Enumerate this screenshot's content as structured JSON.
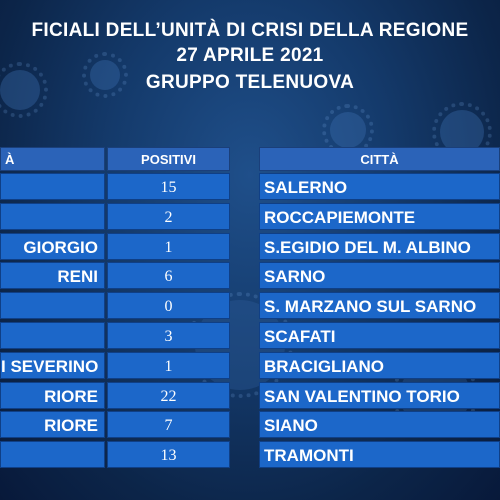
{
  "header": {
    "line1": "FICIALI DELL’UNITÀ DI CRISI DELLA REGIONE",
    "line2": "27 APRILE 2021",
    "line3": "GRUPPO TELENUOVA"
  },
  "left_table": {
    "col_city": "À",
    "col_positivi": "POSITIVI",
    "rows": [
      {
        "city": "",
        "positivi": "15"
      },
      {
        "city": "",
        "positivi": "2"
      },
      {
        "city": "GIORGIO",
        "positivi": "1"
      },
      {
        "city": "RENI",
        "positivi": "6"
      },
      {
        "city": "",
        "positivi": "0"
      },
      {
        "city": "",
        "positivi": "3"
      },
      {
        "city": "I SEVERINO",
        "positivi": "1"
      },
      {
        "city": "RIORE",
        "positivi": "22"
      },
      {
        "city": "RIORE",
        "positivi": "7"
      },
      {
        "city": "",
        "positivi": "13"
      }
    ]
  },
  "right_table": {
    "col_city": "CITTÀ",
    "rows": [
      "SALERNO",
      "ROCCAPIEMONTE",
      "S.EGIDIO DEL M. ALBINO",
      "SARNO",
      "S. MARZANO SUL SARNO",
      "SCAFATI",
      "BRACIGLIANO",
      "SAN VALENTINO TORIO",
      "SIANO",
      "TRAMONTI"
    ]
  }
}
